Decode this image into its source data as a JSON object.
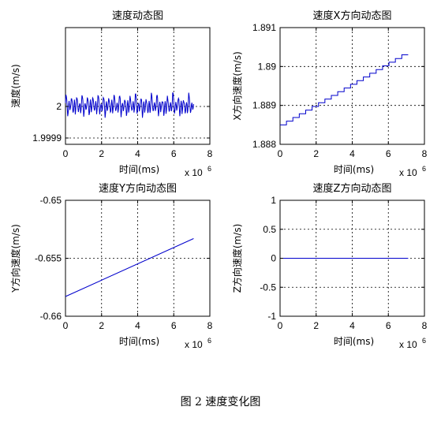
{
  "figure": {
    "caption": "图 2  速度变化图"
  },
  "chart_data": [
    {
      "type": "line",
      "title": "速度动态图",
      "xlabel": "时间(ms)",
      "ylabel": "速度(m/s)",
      "x_exponent": "x 10",
      "x_exponent_power": "6",
      "xlim": [
        0,
        8
      ],
      "ylim": [
        1.99988,
        2.00025
      ],
      "xticks": [
        0,
        2,
        4,
        6,
        8
      ],
      "xtick_labels": [
        "0",
        "2",
        "4",
        "6",
        "8"
      ],
      "yticks": [
        1.9999,
        2
      ],
      "ytick_labels": [
        "1.9999",
        "2"
      ],
      "grid": true,
      "series": [
        {
          "color": "#0000cc",
          "pattern": "oscillating",
          "x_start": 0.0,
          "x_end": 7.1,
          "cycles": 24,
          "center": 2.0,
          "amplitude": 4e-05
        }
      ]
    },
    {
      "type": "line",
      "title": "速度X方向动态图",
      "xlabel": "时间(ms)",
      "ylabel": "X方向速度(m/s)",
      "x_exponent": "x 10",
      "x_exponent_power": "6",
      "xlim": [
        0,
        8
      ],
      "ylim": [
        1.888,
        1.891
      ],
      "xticks": [
        0,
        2,
        4,
        6,
        8
      ],
      "xtick_labels": [
        "0",
        "2",
        "4",
        "6",
        "8"
      ],
      "yticks": [
        1.888,
        1.889,
        1.89,
        1.891
      ],
      "ytick_labels": [
        "1.888",
        "1.889",
        "1.89",
        "1.891"
      ],
      "grid": true,
      "series": [
        {
          "color": "#0000cc",
          "pattern": "staircase",
          "x_start": 0.0,
          "x_end": 7.1,
          "steps": 20,
          "y_start": 1.8885,
          "y_end": 1.8903
        }
      ]
    },
    {
      "type": "line",
      "title": "速度Y方向动态图",
      "xlabel": "时间(ms)",
      "ylabel": "Y方向速度(m/s)",
      "x_exponent": "x 10",
      "x_exponent_power": "6",
      "xlim": [
        0,
        8
      ],
      "ylim": [
        -0.66,
        -0.65
      ],
      "xticks": [
        0,
        2,
        4,
        6,
        8
      ],
      "xtick_labels": [
        "0",
        "2",
        "4",
        "6",
        "8"
      ],
      "yticks": [
        -0.66,
        -0.655,
        -0.65
      ],
      "ytick_labels": [
        "-0.66",
        "-0.655",
        "-0.65"
      ],
      "grid": true,
      "series": [
        {
          "color": "#0000cc",
          "pattern": "linear",
          "x_start": 0.0,
          "x_end": 7.1,
          "y_start": -0.6583,
          "y_end": -0.6533
        }
      ]
    },
    {
      "type": "line",
      "title": "速度Z方向动态图",
      "xlabel": "时间(ms)",
      "ylabel": "Z方向速度(m/s)",
      "x_exponent": "x 10",
      "x_exponent_power": "6",
      "xlim": [
        0,
        8
      ],
      "ylim": [
        -1,
        1
      ],
      "xticks": [
        0,
        2,
        4,
        6,
        8
      ],
      "xtick_labels": [
        "0",
        "2",
        "4",
        "6",
        "8"
      ],
      "yticks": [
        -1,
        -0.5,
        0,
        0.5,
        1
      ],
      "ytick_labels": [
        "-1",
        "-0.5",
        "0",
        "0.5",
        "1"
      ],
      "grid": true,
      "series": [
        {
          "color": "#0000cc",
          "pattern": "linear",
          "x_start": 0.0,
          "x_end": 7.1,
          "y_start": 0,
          "y_end": 0
        }
      ]
    }
  ]
}
